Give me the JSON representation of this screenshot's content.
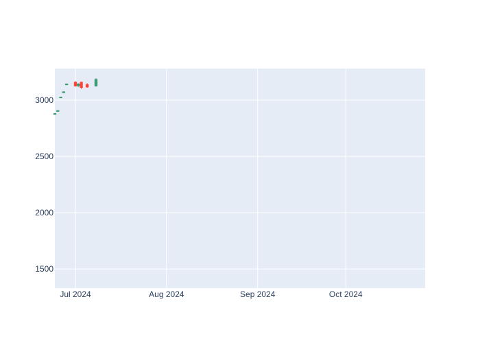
{
  "chart_data": {
    "type": "candlestick",
    "title": "",
    "xlabel": "",
    "ylabel": "",
    "x_range": [
      "2024-06-24",
      "2024-10-28"
    ],
    "ylim": [
      1330,
      3280
    ],
    "grid": true,
    "legend": "none",
    "x_ticks": [
      {
        "date": "2024-07-01",
        "label": "Jul 2024"
      },
      {
        "date": "2024-08-01",
        "label": "Aug 2024"
      },
      {
        "date": "2024-09-01",
        "label": "Sep 2024"
      },
      {
        "date": "2024-10-01",
        "label": "Oct 2024"
      }
    ],
    "y_ticks": [
      1500,
      2000,
      2500,
      3000
    ],
    "colors": {
      "plot_bg": "#e5ecf6",
      "grid": "#ffffff",
      "increasing": "#3d9970",
      "decreasing": "#ff4136"
    },
    "candles": [
      {
        "date": "2024-06-24",
        "open": 2875,
        "high": 2885,
        "low": 2870,
        "close": 2882
      },
      {
        "date": "2024-06-25",
        "open": 2900,
        "high": 2912,
        "low": 2898,
        "close": 2908
      },
      {
        "date": "2024-06-26",
        "open": 3020,
        "high": 3030,
        "low": 3018,
        "close": 3028
      },
      {
        "date": "2024-06-27",
        "open": 3065,
        "high": 3078,
        "low": 3063,
        "close": 3075
      },
      {
        "date": "2024-06-28",
        "open": 3135,
        "high": 3148,
        "low": 3133,
        "close": 3145
      },
      {
        "date": "2024-07-01",
        "open": 3160,
        "high": 3168,
        "low": 3120,
        "close": 3125
      },
      {
        "date": "2024-07-02",
        "open": 3125,
        "high": 3150,
        "low": 3118,
        "close": 3145
      },
      {
        "date": "2024-07-03",
        "open": 3160,
        "high": 3165,
        "low": 3100,
        "close": 3110
      },
      {
        "date": "2024-07-05",
        "open": 3140,
        "high": 3150,
        "low": 3110,
        "close": 3115
      },
      {
        "date": "2024-07-08",
        "open": 3125,
        "high": 3195,
        "low": 3120,
        "close": 3185
      }
    ]
  }
}
